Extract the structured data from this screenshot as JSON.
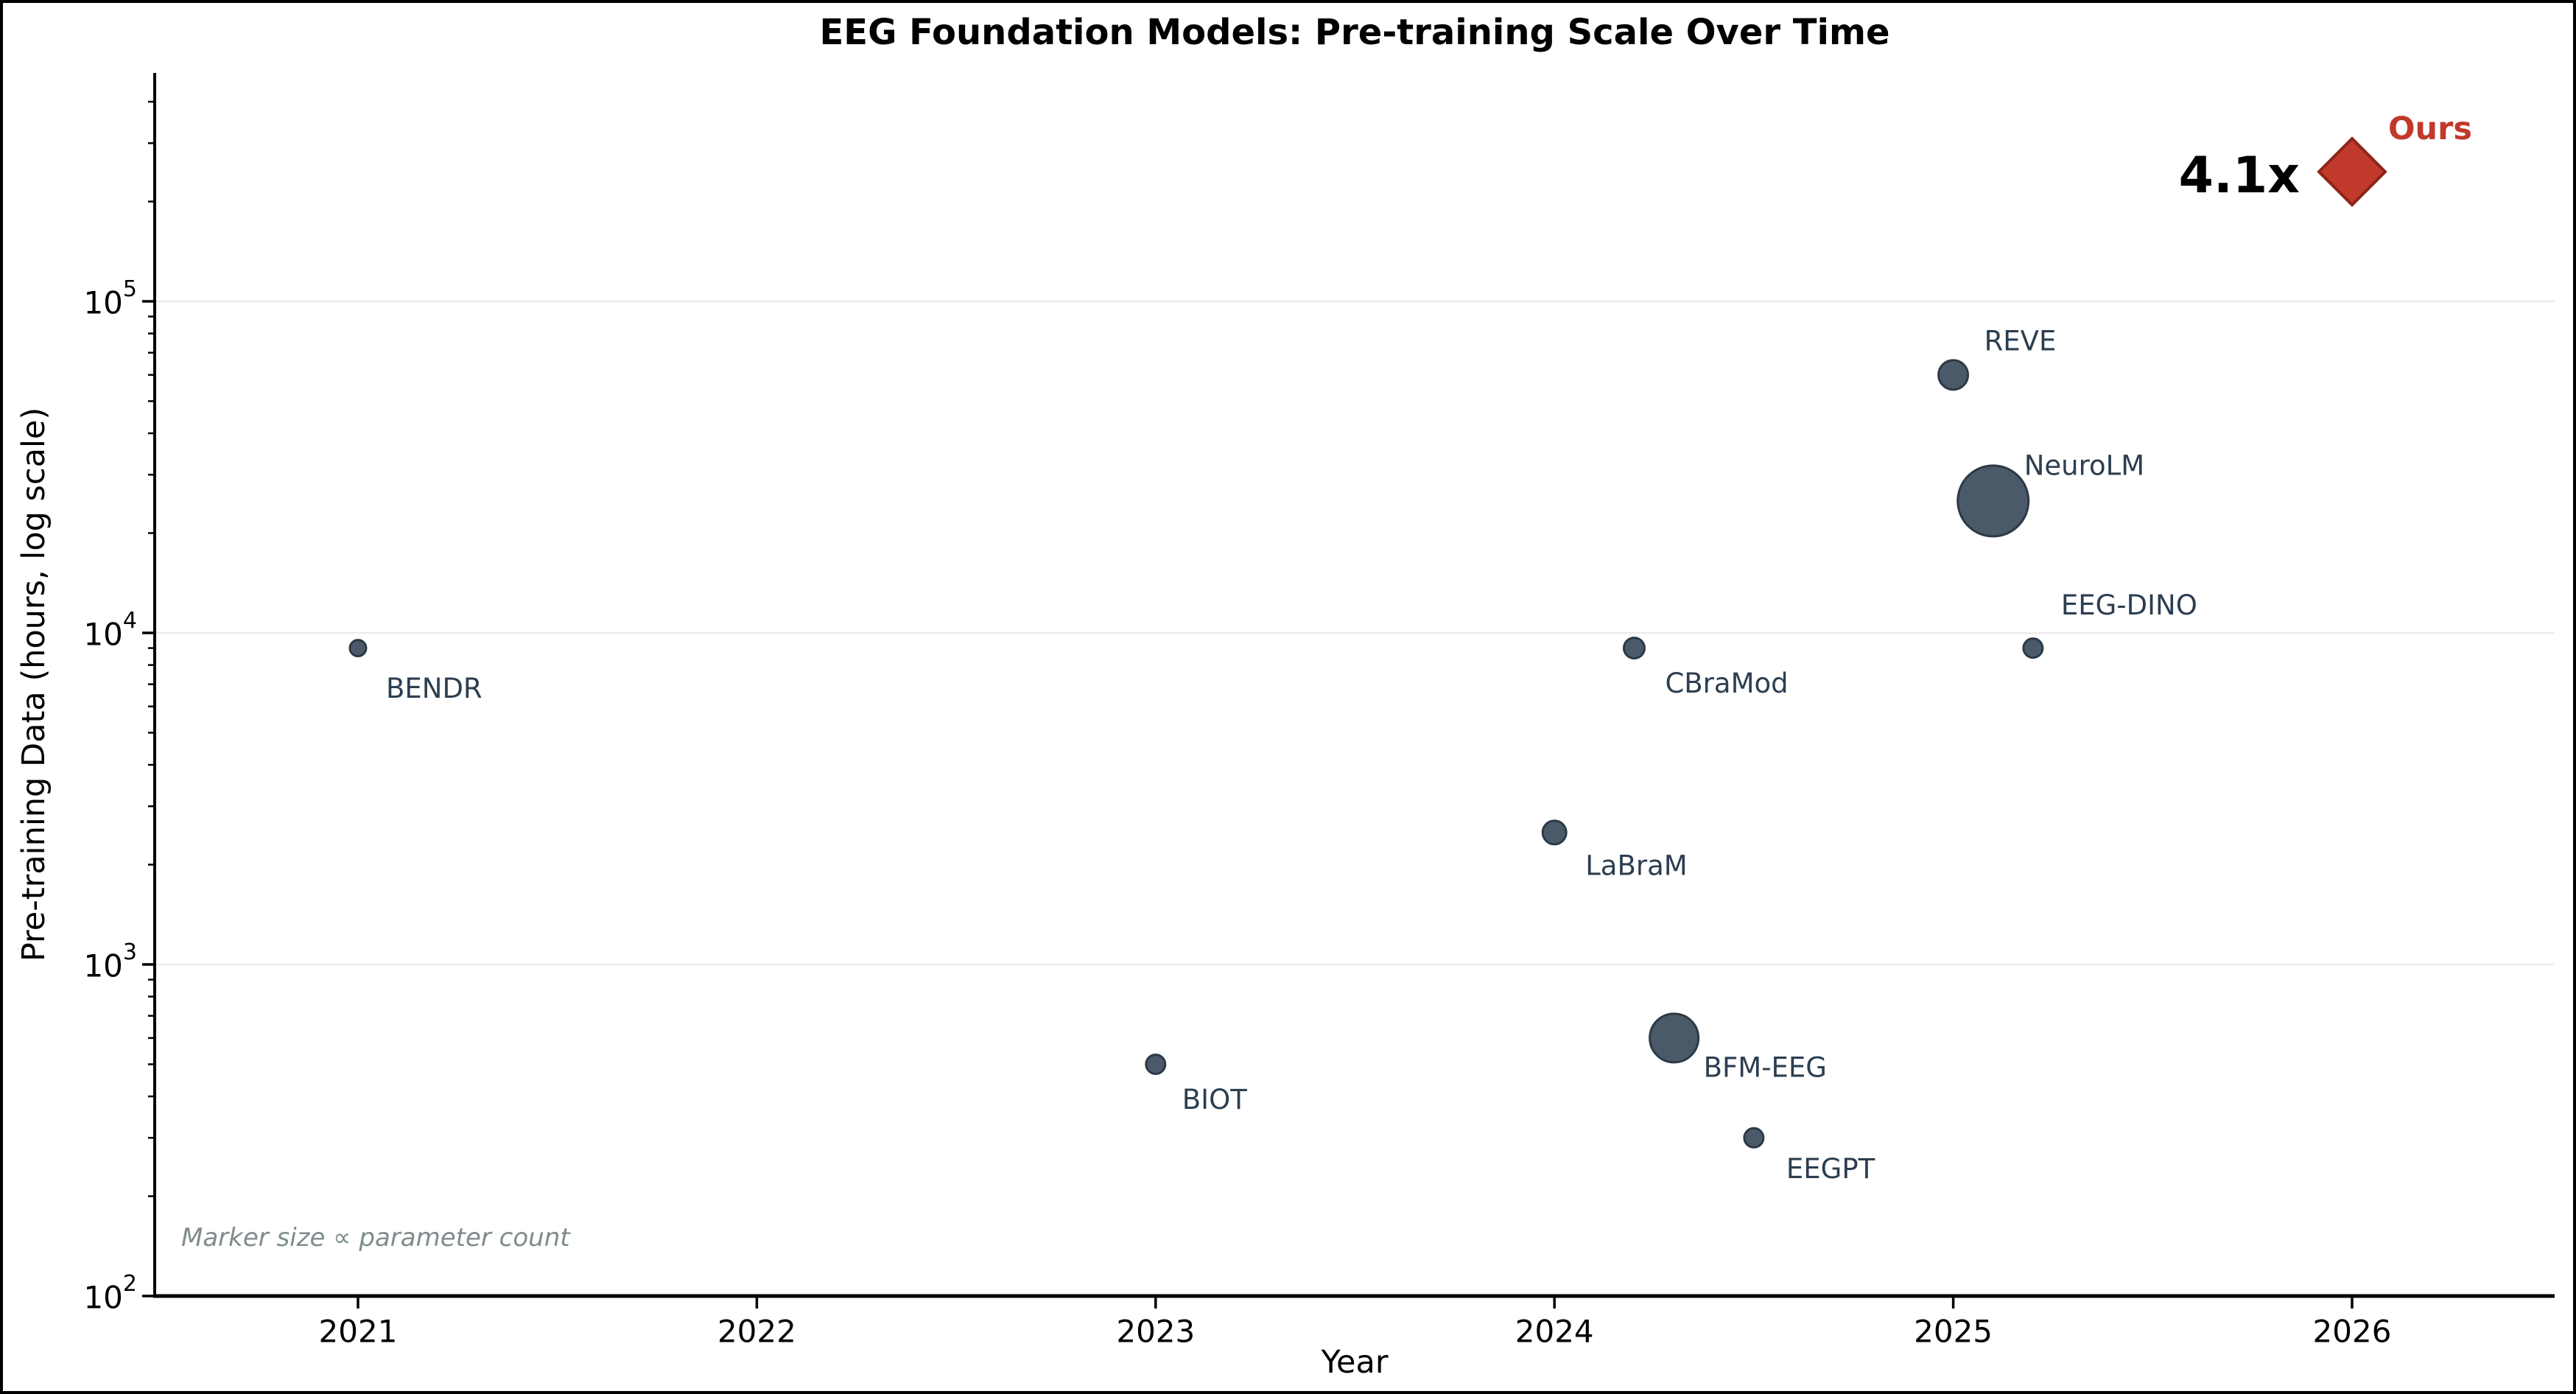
{
  "chart_data": {
    "type": "scatter",
    "title": "EEG Foundation Models: Pre-training Scale Over Time",
    "xlabel": "Year",
    "ylabel": "Pre-training Data (hours, log scale)",
    "note": "Marker size ∝ parameter count",
    "x_axis": {
      "ticks": [
        2021,
        2022,
        2023,
        2024,
        2025,
        2026
      ],
      "range": [
        2020.49,
        2026.51
      ]
    },
    "y_axis": {
      "scale": "log",
      "tick_base": "10",
      "tick_exponents": [
        2,
        3,
        4,
        5
      ],
      "range": [
        100,
        490000
      ]
    },
    "grid": {
      "show": true,
      "orientation": "horizontal-major",
      "color": "#ececec"
    },
    "legend": null,
    "series": [
      {
        "name": "EEG foundation models",
        "marker": "circle",
        "fill": "#4b5a68",
        "edge": "#2c3a47",
        "label_color": "#2c3e50",
        "points": [
          {
            "label": "BENDR",
            "year": 2021.0,
            "hours": 9000,
            "radius": 11,
            "label_dx": 38,
            "label_dy": 55
          },
          {
            "label": "BIOT",
            "year": 2023.0,
            "hours": 500,
            "radius": 13,
            "label_dx": 36,
            "label_dy": 48
          },
          {
            "label": "LaBraM",
            "year": 2024.0,
            "hours": 2500,
            "radius": 16,
            "label_dx": 42,
            "label_dy": 45
          },
          {
            "label": "CBraMod",
            "year": 2024.2,
            "hours": 9000,
            "radius": 14,
            "label_dx": 42,
            "label_dy": 48
          },
          {
            "label": "BFM-EEG",
            "year": 2024.3,
            "hours": 600,
            "radius": 33,
            "label_dx": 40,
            "label_dy": 40
          },
          {
            "label": "EEGPT",
            "year": 2024.5,
            "hours": 300,
            "radius": 13,
            "label_dx": 44,
            "label_dy": 42
          },
          {
            "label": "REVE",
            "year": 2025.0,
            "hours": 60000,
            "radius": 20,
            "label_dx": 42,
            "label_dy": -46
          },
          {
            "label": "NeuroLM",
            "year": 2025.1,
            "hours": 25000,
            "radius": 48,
            "label_dx": 42,
            "label_dy": -48
          },
          {
            "label": "EEG-DINO",
            "year": 2025.2,
            "hours": 9000,
            "radius": 13,
            "label_dx": 38,
            "label_dy": -58
          }
        ]
      }
    ],
    "highlight": {
      "label": "Ours",
      "year": 2026.0,
      "hours": 246000,
      "marker": "diamond",
      "half_diagonal": 45,
      "fill": "#c0392b",
      "edge": "#8e251a",
      "annotation": "4.1x",
      "annotation_color": "#000000",
      "label_color": "#c0392b"
    }
  }
}
